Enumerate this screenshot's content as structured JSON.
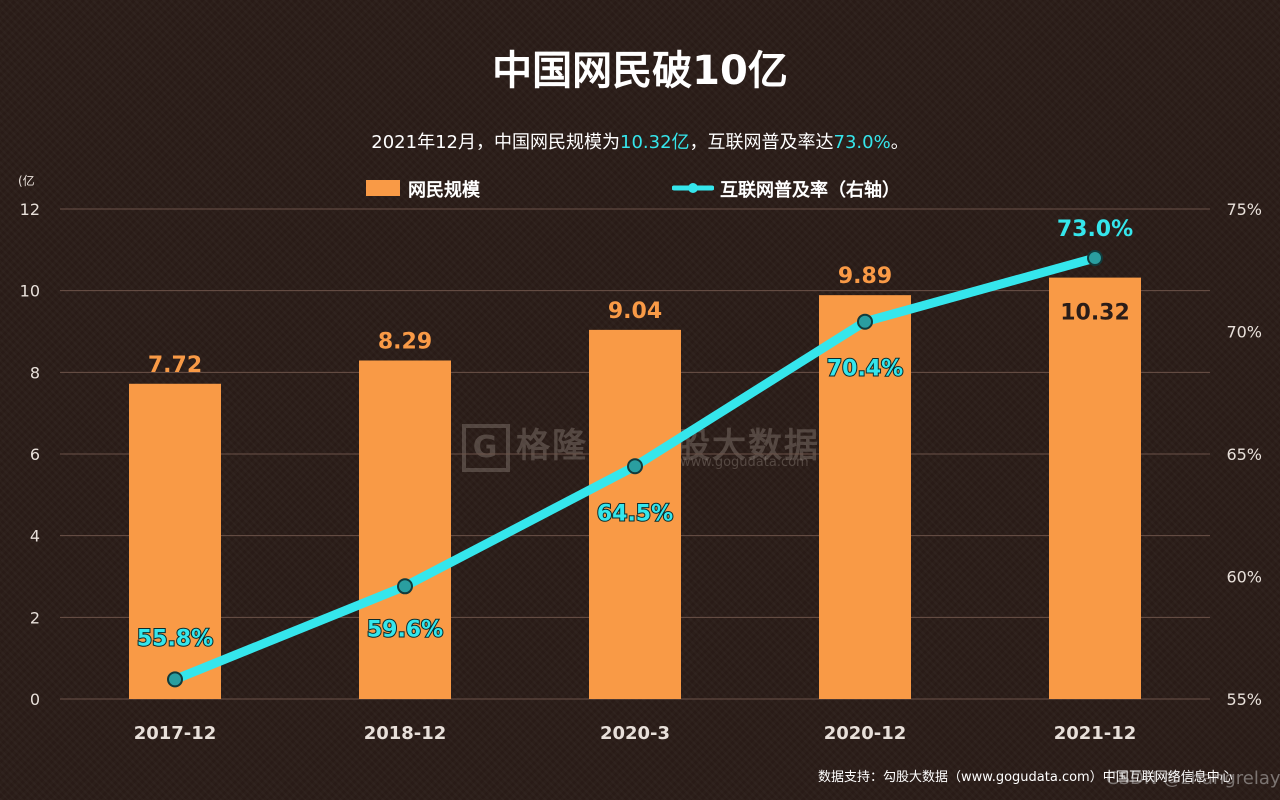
{
  "chart_data": {
    "type": "bar",
    "title": "中国网民破10亿",
    "subtitle_parts": {
      "prefix": "2021年12月，中国网民规模为",
      "highlight1": "10.32亿",
      "middle": "，互联网普及率达",
      "highlight2": "73.0%",
      "suffix": "。"
    },
    "categories": [
      "2017-12",
      "2018-12",
      "2020-3",
      "2020-12",
      "2021-12"
    ],
    "series": [
      {
        "name": "网民规模",
        "type": "bar",
        "axis": "left",
        "values": [
          7.72,
          8.29,
          9.04,
          9.89,
          10.32
        ],
        "labels": [
          "7.72",
          "8.29",
          "9.04",
          "9.89",
          "10.32"
        ]
      },
      {
        "name": "互联网普及率（右轴）",
        "type": "line",
        "axis": "right",
        "values": [
          55.8,
          59.6,
          64.5,
          70.4,
          73.0
        ],
        "labels": [
          "55.8%",
          "59.6%",
          "64.5%",
          "70.4%",
          "73.0%"
        ]
      }
    ],
    "y_left": {
      "unit_label": "(亿",
      "ylim": [
        0,
        12
      ],
      "ticks": [
        "0",
        "2",
        "4",
        "6",
        "8",
        "10",
        "12"
      ]
    },
    "y_right": {
      "ylim": [
        55,
        75
      ],
      "ticks": [
        "55%",
        "60%",
        "65%",
        "70%",
        "75%"
      ]
    },
    "colors": {
      "bar": "#f99a46",
      "line": "#35e6ec",
      "bar_label": "#f99a46",
      "line_label": "#35e6ec",
      "grid": "#6b5248"
    },
    "grid": true,
    "legend": "top-center"
  },
  "footer": {
    "credit": "数据支持：勾股大数据（www.gogudata.com）中国互联网络信息中心",
    "watermark": "格隆汇",
    "watermark_tail": "股大数据",
    "watermark_url": "www.gogudata.com",
    "csdn_mark": "CSDN @zhangrelay"
  }
}
